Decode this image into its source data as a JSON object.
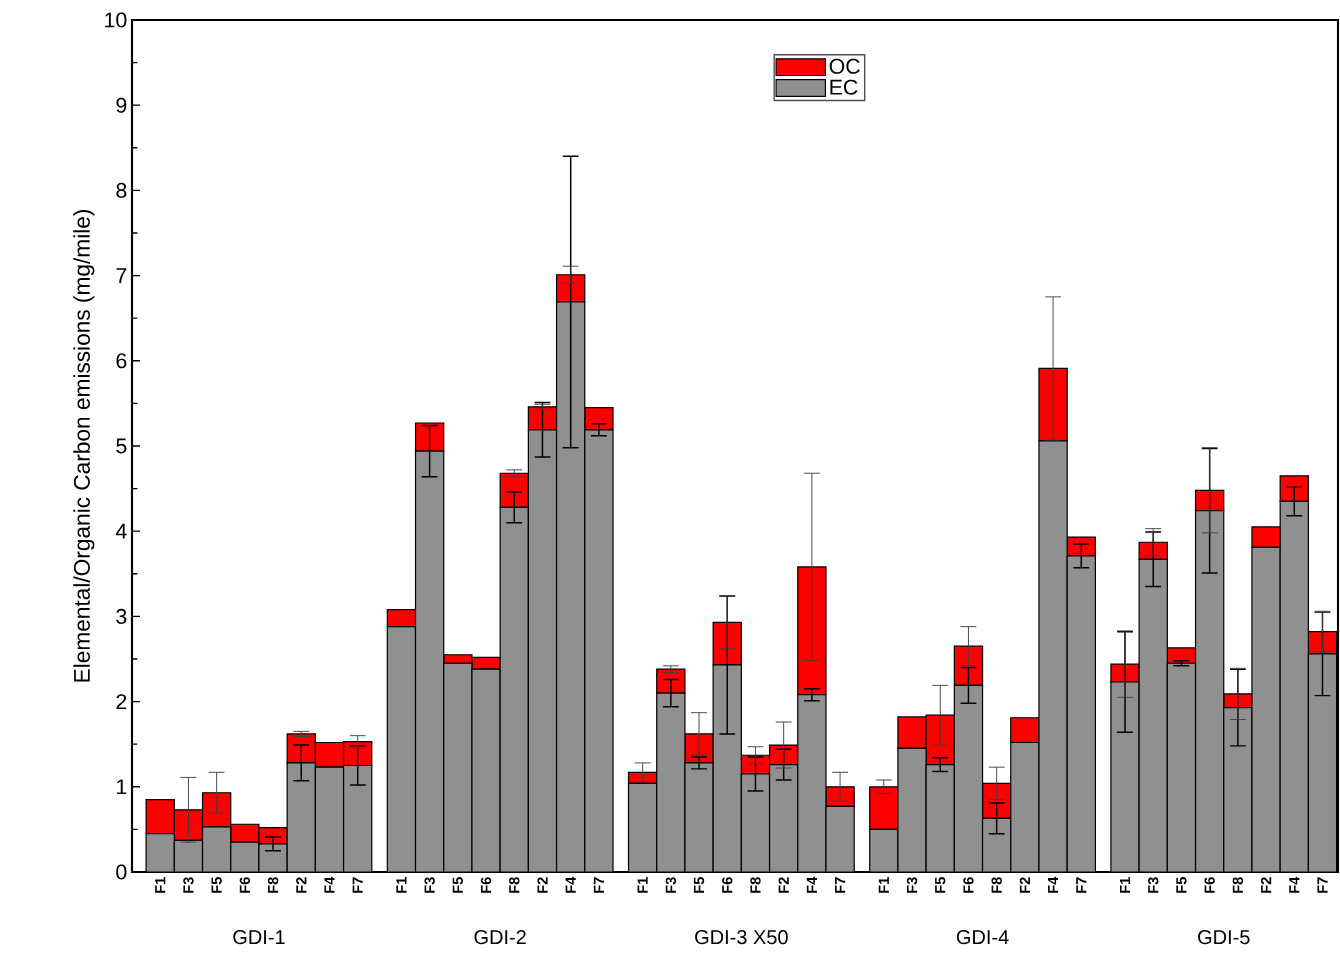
{
  "chart_data": {
    "type": "bar",
    "stacked": true,
    "ylabel": "Elemental/Organic Carbon emissions (mg/mile)",
    "categories": [
      "F1",
      "F3",
      "F5",
      "F6",
      "F8",
      "F2",
      "F4",
      "F7",
      "F1",
      "F3",
      "F5",
      "F6",
      "F8",
      "F2",
      "F4",
      "F7",
      "F1",
      "F3",
      "F5",
      "F6",
      "F8",
      "F2",
      "F4",
      "F7",
      "F1",
      "F3",
      "F5",
      "F6",
      "F8",
      "F2",
      "F4",
      "F7",
      "F1",
      "F3",
      "F5",
      "F6",
      "F8",
      "F2",
      "F4",
      "F7"
    ],
    "annotations": [
      "GDI-1",
      "GDI-2",
      "GDI-3 X50",
      "GDI-4",
      "GDI-5"
    ],
    "series": [
      {
        "name": "EC",
        "color": "#909090",
        "values": [
          0.45,
          0.37,
          0.53,
          0.35,
          0.33,
          1.28,
          1.23,
          1.25,
          2.88,
          4.94,
          2.45,
          2.38,
          4.28,
          5.19,
          6.69,
          5.19,
          1.04,
          2.1,
          1.28,
          2.43,
          1.15,
          1.26,
          2.08,
          0.77,
          0.5,
          1.45,
          1.26,
          2.19,
          0.63,
          1.52,
          5.06,
          3.71,
          2.23,
          3.67,
          2.45,
          4.24,
          1.93,
          3.81,
          4.35,
          2.56
        ],
        "errors": [
          null,
          null,
          null,
          null,
          0.08,
          0.21,
          null,
          0.23,
          null,
          0.3,
          null,
          null,
          0.18,
          0.32,
          1.71,
          0.07,
          null,
          0.16,
          0.07,
          0.81,
          0.2,
          0.18,
          0.07,
          null,
          null,
          null,
          0.08,
          0.21,
          0.18,
          null,
          null,
          0.14,
          0.59,
          0.32,
          0.03,
          0.73,
          0.45,
          null,
          0.17,
          0.49
        ]
      },
      {
        "name": "OC",
        "color": "#ff0000",
        "values": [
          0.4,
          0.36,
          0.4,
          0.21,
          0.19,
          0.34,
          0.29,
          0.28,
          0.2,
          0.33,
          0.1,
          0.14,
          0.4,
          0.27,
          0.32,
          0.26,
          0.13,
          0.28,
          0.34,
          0.5,
          0.22,
          0.23,
          1.5,
          0.23,
          0.5,
          0.37,
          0.58,
          0.46,
          0.41,
          0.29,
          0.85,
          0.22,
          0.21,
          0.2,
          0.18,
          0.24,
          0.16,
          0.24,
          0.3,
          0.26
        ],
        "errors": [
          null,
          0.38,
          0.24,
          null,
          null,
          0.03,
          null,
          0.07,
          null,
          null,
          null,
          null,
          0.04,
          0.03,
          0.1,
          null,
          0.11,
          0.04,
          0.25,
          0.31,
          0.1,
          0.27,
          1.1,
          0.17,
          0.08,
          null,
          0.35,
          0.23,
          0.19,
          null,
          0.84,
          null,
          0.39,
          0.16,
          null,
          0.5,
          0.3,
          null,
          null,
          0.24
        ]
      }
    ],
    "ylim": [
      0,
      10
    ],
    "yticks": [
      0,
      1,
      2,
      3,
      4,
      5,
      6,
      7,
      8,
      9,
      10
    ],
    "legend": "top",
    "grid": false
  }
}
